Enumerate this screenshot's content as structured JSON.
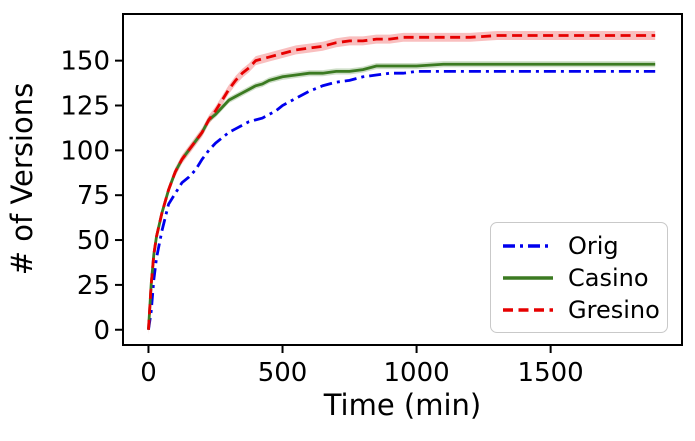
{
  "figure": {
    "background": "#ffffff",
    "spine_color": "#000000"
  },
  "chart_data": {
    "type": "line",
    "title": "",
    "xlabel": "Time (min)",
    "ylabel": "# of Versions",
    "xlim": [
      -95,
      1990
    ],
    "ylim": [
      -8.5,
      176
    ],
    "xticks": [
      0,
      500,
      1000,
      1500
    ],
    "yticks": [
      0,
      25,
      50,
      75,
      100,
      125,
      150
    ],
    "grid": false,
    "legend_position": "lower right",
    "x": [
      0,
      10,
      20,
      30,
      50,
      75,
      100,
      125,
      150,
      175,
      200,
      225,
      250,
      275,
      300,
      325,
      350,
      375,
      400,
      425,
      450,
      475,
      500,
      550,
      600,
      650,
      700,
      750,
      800,
      850,
      900,
      950,
      1000,
      1100,
      1200,
      1300,
      1400,
      1500,
      1600,
      1700,
      1800,
      1890
    ],
    "series": [
      {
        "name": "Orig",
        "color": "#0000ee",
        "style": "dashdot",
        "dash": "12,5,3,5",
        "band_halfwidth": 0,
        "band_alpha": 0,
        "values": [
          0,
          10,
          28,
          40,
          55,
          70,
          76,
          82,
          85,
          89,
          95,
          100,
          104,
          107,
          110,
          112,
          114,
          116,
          117,
          118,
          120,
          122,
          125,
          129,
          133,
          136,
          138,
          139,
          141,
          142,
          143,
          143,
          144,
          144,
          144,
          144,
          144,
          144,
          144,
          144,
          144,
          144
        ]
      },
      {
        "name": "Casino",
        "color": "#3b7a21",
        "style": "solid",
        "dash": "",
        "band_halfwidth": 1.7,
        "band_alpha": 0.25,
        "values": [
          0,
          25,
          42,
          52,
          65,
          78,
          88,
          95,
          100,
          105,
          110,
          117,
          120,
          124,
          128,
          130,
          132,
          134,
          136,
          137,
          139,
          140,
          141,
          142,
          143,
          143,
          144,
          144,
          145,
          147,
          147,
          147,
          147,
          148,
          148,
          148,
          148,
          148,
          148,
          148,
          148,
          148
        ]
      },
      {
        "name": "Gresino",
        "color": "#e60000",
        "style": "dashed",
        "dash": "10,5.5",
        "band_halfwidth": 2.5,
        "band_alpha": 0.25,
        "values": [
          0,
          25,
          42,
          52,
          65,
          78,
          88,
          95,
          100,
          105,
          110,
          117,
          122,
          128,
          134,
          139,
          143,
          146,
          150,
          151,
          152,
          153,
          154,
          156,
          157,
          158,
          160,
          161,
          161,
          162,
          162,
          163,
          163,
          163,
          163,
          164,
          164,
          164,
          164,
          164,
          164,
          164
        ]
      }
    ]
  }
}
